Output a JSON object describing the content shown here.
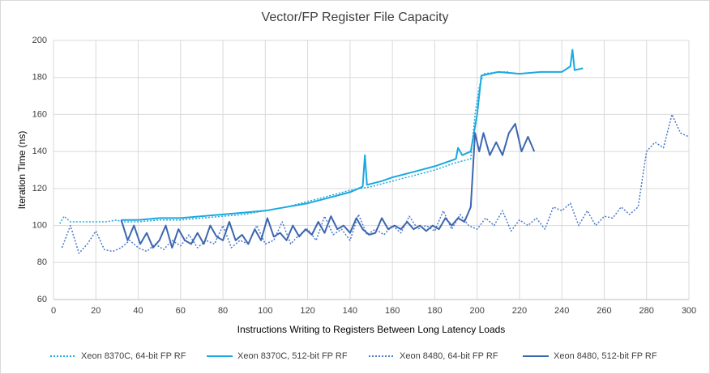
{
  "chart_data": {
    "type": "line",
    "title": "Vector/FP Register File Capacity",
    "x_label": "Instructions Writing to Registers Between  Long Latency Loads",
    "y_label": "Iteration Time (ns)",
    "xlim": [
      0,
      300
    ],
    "xticks": [
      0,
      20,
      40,
      60,
      80,
      100,
      120,
      140,
      160,
      180,
      200,
      220,
      240,
      260,
      280,
      300
    ],
    "ylim": [
      60,
      200
    ],
    "yticks": [
      60,
      80,
      100,
      120,
      140,
      160,
      180,
      200
    ],
    "grid": true,
    "series": [
      {
        "name": "Xeon 8370C, 64-bit FP RF",
        "color": "#1aa9e0",
        "style": "dotted",
        "x": [
          3,
          5,
          8,
          15,
          25,
          30,
          32,
          40,
          50,
          60,
          70,
          80,
          90,
          100,
          110,
          120,
          130,
          140,
          150,
          160,
          170,
          180,
          190,
          197,
          199,
          201,
          203,
          210,
          215
        ],
        "values": [
          101,
          105,
          102,
          102,
          102,
          103,
          102,
          102,
          103,
          103,
          104,
          105,
          106,
          108,
          110,
          113,
          116,
          119,
          121,
          124,
          127,
          130,
          134,
          136,
          160,
          175,
          182,
          183,
          183
        ]
      },
      {
        "name": "Xeon 8370C, 512-bit FP RF",
        "color": "#1aa9e0",
        "style": "solid",
        "x": [
          32,
          40,
          50,
          60,
          70,
          80,
          90,
          100,
          110,
          120,
          130,
          140,
          146,
          147,
          148,
          155,
          160,
          170,
          180,
          190,
          191,
          193,
          197,
          200,
          202,
          210,
          220,
          230,
          240,
          244,
          245,
          246,
          250
        ],
        "values": [
          103,
          103,
          104,
          104,
          105,
          106,
          107,
          108,
          110,
          112,
          115,
          118,
          121,
          138,
          122,
          124,
          126,
          129,
          132,
          136,
          142,
          138,
          140,
          160,
          181,
          183,
          182,
          183,
          183,
          186,
          195,
          184,
          185
        ]
      },
      {
        "name": "Xeon 8480, 64-bit FP RF",
        "color": "#4a78c8",
        "style": "dotted",
        "x": [
          4,
          8,
          12,
          16,
          20,
          24,
          28,
          32,
          36,
          40,
          44,
          48,
          52,
          56,
          60,
          64,
          68,
          72,
          76,
          80,
          84,
          88,
          92,
          96,
          100,
          104,
          108,
          112,
          116,
          120,
          124,
          128,
          132,
          136,
          140,
          144,
          148,
          152,
          156,
          160,
          164,
          168,
          172,
          176,
          180,
          184,
          188,
          192,
          196,
          200,
          204,
          208,
          212,
          216,
          220,
          224,
          228,
          232,
          236,
          240,
          244,
          248,
          252,
          256,
          260,
          264,
          268,
          272,
          276,
          280,
          284,
          288,
          292,
          296,
          300
        ],
        "values": [
          88,
          100,
          85,
          90,
          97,
          87,
          86,
          88,
          92,
          88,
          86,
          90,
          87,
          92,
          89,
          95,
          88,
          92,
          90,
          100,
          88,
          92,
          90,
          100,
          90,
          92,
          102,
          90,
          95,
          98,
          92,
          105,
          95,
          98,
          92,
          106,
          95,
          98,
          95,
          100,
          96,
          105,
          98,
          100,
          97,
          108,
          98,
          106,
          100,
          98,
          104,
          100,
          108,
          97,
          103,
          100,
          104,
          98,
          110,
          108,
          112,
          100,
          108,
          100,
          105,
          104,
          110,
          106,
          110,
          140,
          145,
          142,
          160,
          150,
          148
        ]
      },
      {
        "name": "Xeon 8480, 512-bit FP RF",
        "color": "#3d66b0",
        "style": "solid",
        "x": [
          32,
          35,
          38,
          41,
          44,
          47,
          50,
          53,
          56,
          59,
          62,
          65,
          68,
          71,
          74,
          77,
          80,
          83,
          86,
          89,
          92,
          95,
          98,
          101,
          104,
          107,
          110,
          113,
          116,
          119,
          122,
          125,
          128,
          131,
          134,
          137,
          140,
          143,
          146,
          149,
          152,
          155,
          158,
          161,
          164,
          167,
          170,
          173,
          176,
          179,
          182,
          185,
          188,
          191,
          194,
          197,
          199,
          201,
          203,
          206,
          209,
          212,
          215,
          218,
          221,
          224,
          227
        ],
        "values": [
          103,
          92,
          100,
          90,
          96,
          88,
          92,
          100,
          88,
          98,
          92,
          90,
          96,
          90,
          100,
          94,
          92,
          102,
          92,
          95,
          90,
          98,
          92,
          104,
          94,
          96,
          92,
          100,
          94,
          98,
          95,
          102,
          96,
          105,
          98,
          100,
          96,
          104,
          98,
          95,
          96,
          104,
          98,
          100,
          98,
          102,
          98,
          100,
          97,
          100,
          98,
          104,
          100,
          104,
          102,
          110,
          150,
          140,
          150,
          138,
          145,
          138,
          150,
          155,
          140,
          148,
          140
        ]
      }
    ]
  }
}
